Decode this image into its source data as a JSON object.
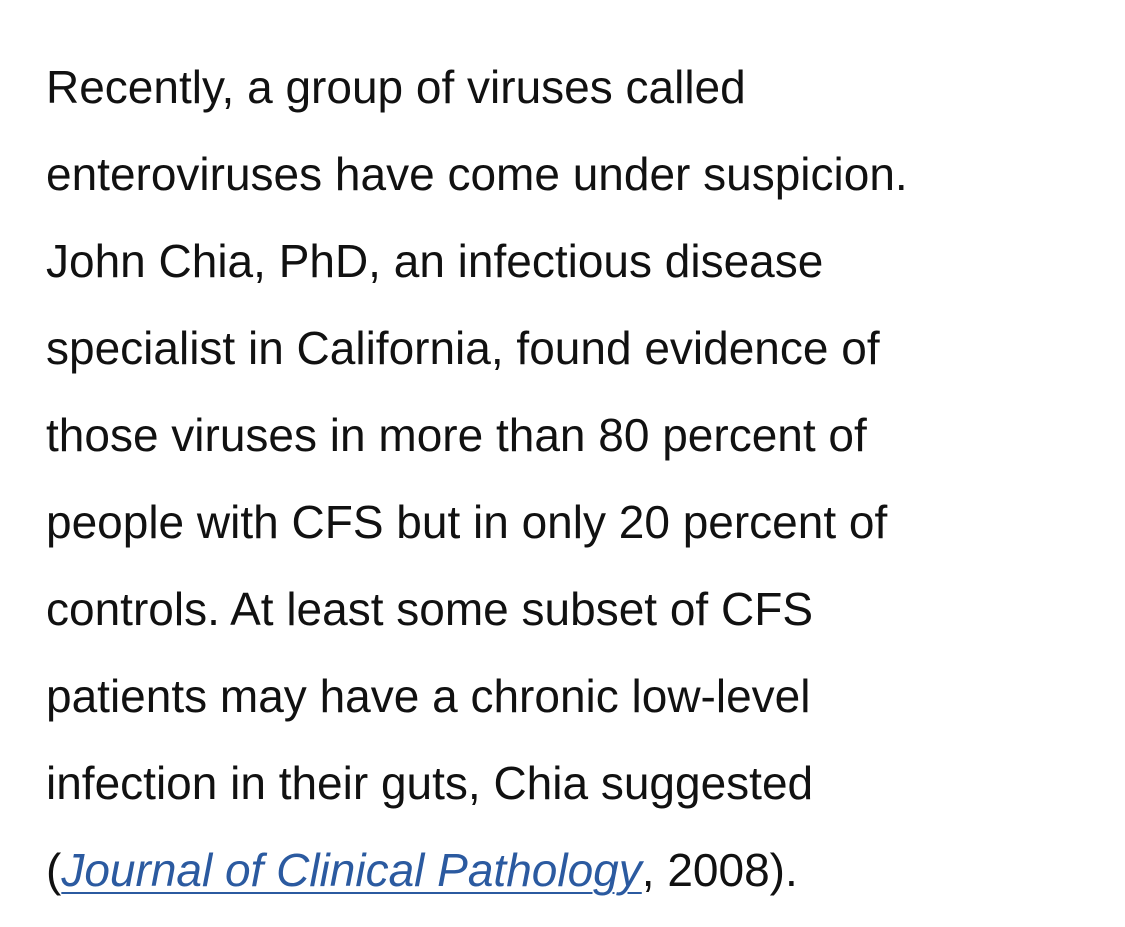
{
  "article": {
    "lines": [
      "Recently, a group of viruses called",
      "enteroviruses have come under suspicion.",
      "John Chia, PhD, an infectious disease",
      "specialist in California, found evidence of",
      "those viruses in more than 80 percent of",
      "people with CFS but in only 20 percent of",
      "controls. At least some subset of CFS",
      "patients may have a chronic low-level",
      "infection in their guts, Chia suggested"
    ],
    "citation": {
      "open_paren": "(",
      "link_text": "Journal of Clinical Pathology",
      "suffix": ", 2008)."
    }
  },
  "colors": {
    "text": "#111111",
    "link": "#2b5aa0",
    "background": "#ffffff"
  }
}
